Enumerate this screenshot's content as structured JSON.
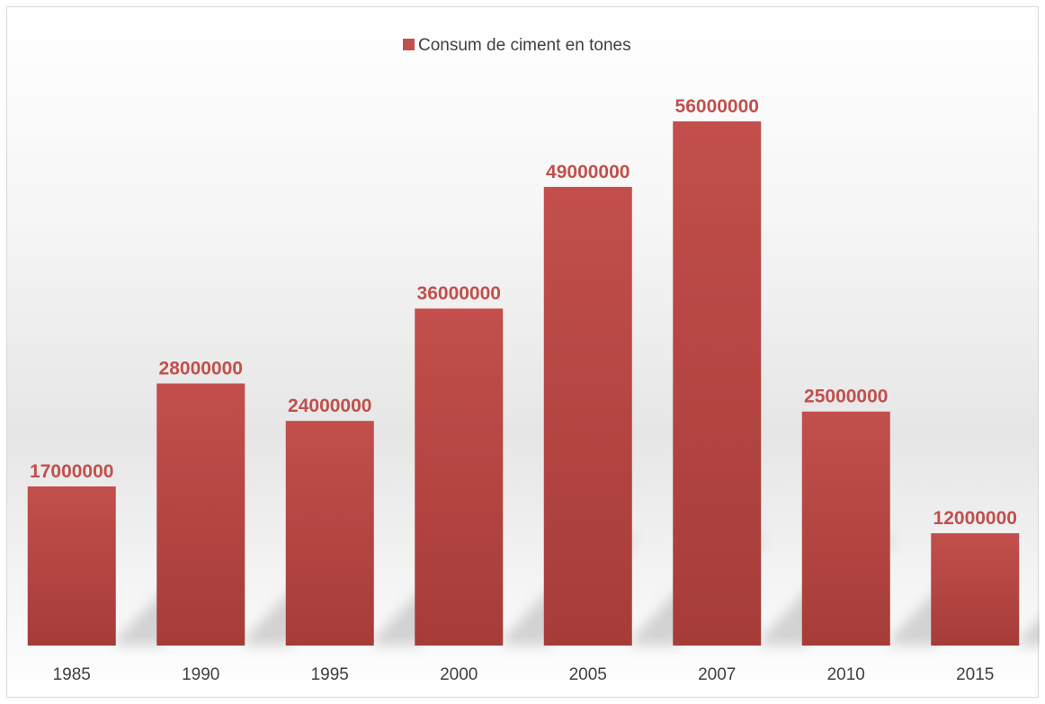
{
  "colors": {
    "bar": "#c0504d",
    "bar_top": "#c24f4c",
    "bar_bottom": "#a63c38",
    "label": "#c0504d"
  },
  "chart_data": {
    "type": "bar",
    "title": "",
    "xlabel": "",
    "ylabel": "",
    "categories": [
      "1985",
      "1990",
      "1995",
      "2000",
      "2005",
      "2007",
      "2010",
      "2015"
    ],
    "series": [
      {
        "name": "Consum de ciment en tones",
        "values": [
          17000000,
          28000000,
          24000000,
          36000000,
          49000000,
          56000000,
          25000000,
          12000000
        ]
      }
    ],
    "data_labels": [
      "17000000",
      "28000000",
      "24000000",
      "36000000",
      "49000000",
      "56000000",
      "25000000",
      "12000000"
    ],
    "ylim": [
      0,
      56000000
    ],
    "grid": false,
    "legend_position": "top"
  }
}
